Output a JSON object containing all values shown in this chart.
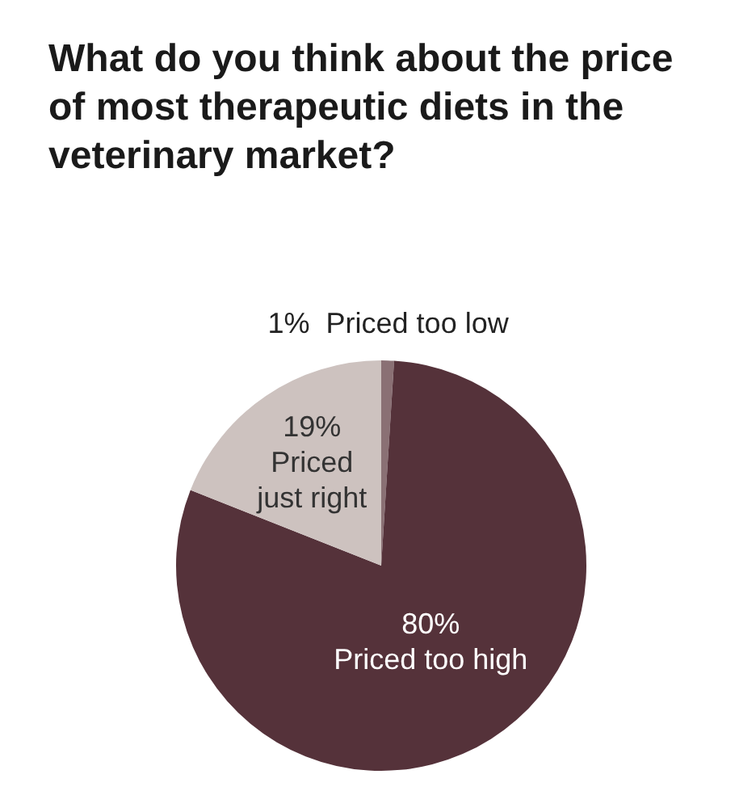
{
  "chart_data": {
    "type": "pie",
    "title": "What do you think about the price of most therapeutic diets in the veterinary market?",
    "categories": [
      "Priced too low",
      "Priced too high",
      "Priced just right"
    ],
    "values": [
      1,
      80,
      19
    ],
    "colors": [
      "#8a7074",
      "#55323a",
      "#cdc2bf"
    ],
    "value_labels": [
      "1%",
      "80%",
      "19%"
    ]
  }
}
